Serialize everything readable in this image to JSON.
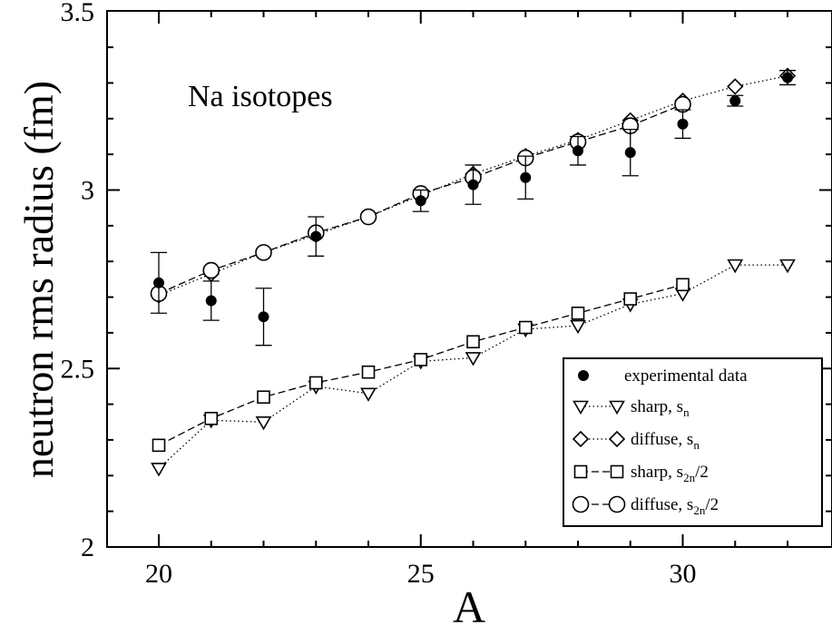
{
  "chart_data": {
    "type": "scatter",
    "xlabel": "A",
    "ylabel": "neutron rms radius (fm)",
    "xlim": [
      19,
      33
    ],
    "ylim": [
      2.0,
      3.5
    ],
    "x_ticks": [
      "20",
      "25",
      "30"
    ],
    "y_ticks": [
      "2",
      "2.5",
      "3",
      "3.5"
    ],
    "annotation": "Na isotopes",
    "grid": false,
    "legend_position": "bottom-right",
    "legend": [
      {
        "series": "exp",
        "text": "experimental data",
        "sub": "",
        "tail": ""
      },
      {
        "series": "sharp_sn",
        "text": "sharp,  s",
        "sub": "n",
        "tail": ""
      },
      {
        "series": "diffuse_sn",
        "text": "diffuse, s",
        "sub": "n",
        "tail": ""
      },
      {
        "series": "sharp_s2n",
        "text": "sharp, s",
        "sub": "2n",
        "tail": "/2"
      },
      {
        "series": "diffuse_s2n",
        "text": "diffuse, s",
        "sub": "2n",
        "tail": "/2"
      }
    ],
    "series": [
      {
        "key": "exp",
        "marker": "filled-circle",
        "line": "none",
        "x": [
          20,
          21,
          22,
          23,
          25,
          26,
          27,
          28,
          29,
          30,
          31,
          32
        ],
        "y": [
          2.74,
          2.69,
          2.645,
          2.87,
          2.97,
          3.015,
          3.035,
          3.11,
          3.105,
          3.185,
          3.25,
          3.315
        ],
        "err": [
          0.085,
          0.055,
          0.08,
          0.055,
          0.03,
          0.055,
          0.06,
          0.04,
          0.065,
          0.04,
          0.015,
          0.02
        ]
      },
      {
        "key": "sharp_sn",
        "marker": "triangle-down",
        "line": "dotted",
        "x": [
          20,
          21,
          22,
          23,
          24,
          25,
          26,
          27,
          28,
          29,
          30,
          31,
          32
        ],
        "y": [
          2.22,
          2.355,
          2.35,
          2.45,
          2.43,
          2.52,
          2.53,
          2.61,
          2.62,
          2.68,
          2.71,
          2.79,
          2.79
        ]
      },
      {
        "key": "diffuse_sn",
        "marker": "diamond",
        "line": "dotted",
        "x": [
          20,
          21,
          22,
          23,
          24,
          25,
          26,
          27,
          28,
          29,
          30,
          31,
          32
        ],
        "y": [
          2.705,
          2.765,
          2.825,
          2.875,
          2.925,
          2.985,
          3.045,
          3.095,
          3.14,
          3.195,
          3.25,
          3.29,
          3.32
        ]
      },
      {
        "key": "sharp_s2n",
        "marker": "square",
        "line": "dashed",
        "x": [
          20,
          21,
          22,
          23,
          24,
          25,
          26,
          27,
          28,
          29,
          30
        ],
        "y": [
          2.285,
          2.36,
          2.42,
          2.46,
          2.49,
          2.525,
          2.575,
          2.615,
          2.655,
          2.695,
          2.735
        ]
      },
      {
        "key": "diffuse_s2n",
        "marker": "open-circle",
        "line": "dashed",
        "x": [
          20,
          21,
          22,
          23,
          24,
          25,
          26,
          27,
          28,
          29,
          30
        ],
        "y": [
          2.71,
          2.775,
          2.825,
          2.88,
          2.925,
          2.99,
          3.035,
          3.09,
          3.135,
          3.18,
          3.24
        ]
      }
    ]
  }
}
